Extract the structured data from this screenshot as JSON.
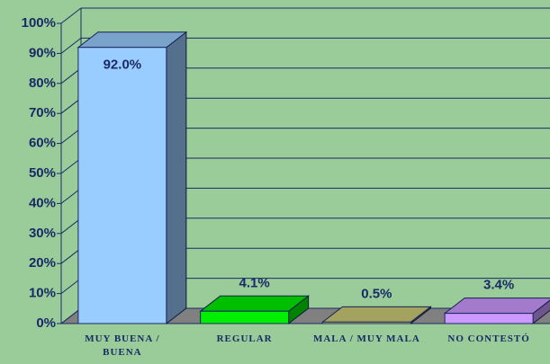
{
  "chart_data": {
    "type": "bar3d",
    "categories": [
      "MUY BUENA / BUENA",
      "REGULAR",
      "MALA / MUY MALA",
      "NO CONTESTÓ"
    ],
    "values": [
      92.0,
      4.1,
      0.5,
      3.4
    ],
    "value_labels": [
      "92.0%",
      "4.1%",
      "0.5%",
      "3.4%"
    ],
    "colors": [
      "#99ccff",
      "#00ee00",
      "#cccc77",
      "#cc99ff"
    ],
    "ylim": [
      0,
      100
    ],
    "yticks": [
      {
        "value": 0,
        "label": "0%"
      },
      {
        "value": 10,
        "label": "10%"
      },
      {
        "value": 20,
        "label": "20%"
      },
      {
        "value": 30,
        "label": "30%"
      },
      {
        "value": 40,
        "label": "40%"
      },
      {
        "value": 50,
        "label": "50%"
      },
      {
        "value": 60,
        "label": "60%"
      },
      {
        "value": 70,
        "label": "70%"
      },
      {
        "value": 80,
        "label": "80%"
      },
      {
        "value": 90,
        "label": "90%"
      },
      {
        "value": 100,
        "label": "100%"
      }
    ],
    "grid": true
  }
}
